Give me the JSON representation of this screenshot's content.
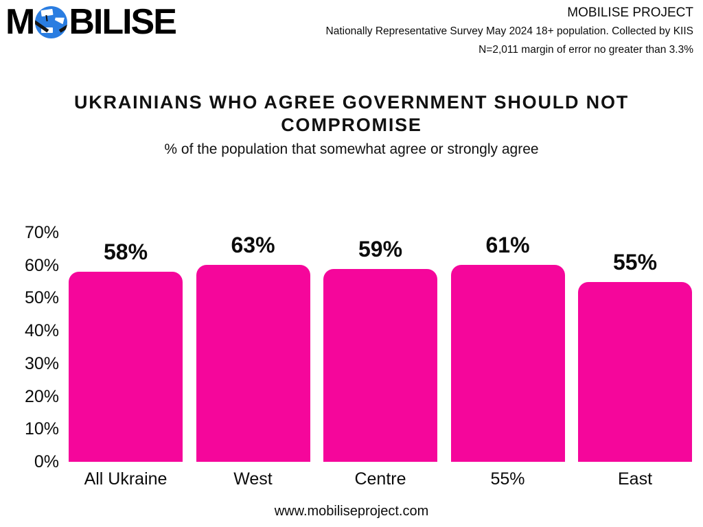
{
  "header": {
    "logo": {
      "text_pre": "M",
      "text_post": "BILISE"
    },
    "project_title": "MOBILISE PROJECT",
    "survey_line": "Nationally Representative Survey May 2024 18+ population. Collected by KIIS",
    "sample_line": "N=2,011 margin of error no greater than 3.3%"
  },
  "main": {
    "title": "UKRAINIANS WHO AGREE GOVERNMENT SHOULD NOT COMPROMISE",
    "subtitle": "% of the population that somewhat agree or strongly agree"
  },
  "footer": {
    "url": "www.mobiliseproject.com"
  },
  "colors": {
    "bar_pink": "#F5069B",
    "logo_blue": "#2A7DE1",
    "text_black": "#0B0B0B"
  },
  "chart_data": {
    "type": "bar",
    "title": "UKRAINIANS WHO AGREE GOVERNMENT SHOULD NOT COMPROMISE",
    "subtitle": "% of the population that somewhat agree or strongly agree",
    "categories": [
      "All Ukraine",
      "West",
      "Centre",
      "55%",
      "East"
    ],
    "values": [
      58,
      63,
      59,
      61,
      55
    ],
    "data_labels": [
      "58%",
      "63%",
      "59%",
      "61%",
      "55%"
    ],
    "y_ticks": [
      70,
      60,
      50,
      40,
      30,
      20,
      10,
      0
    ],
    "y_tick_labels": [
      "70%",
      "60%",
      "50%",
      "40%",
      "30%",
      "20%",
      "10%",
      "0%"
    ],
    "ylim": [
      0,
      70
    ],
    "xlabel": "",
    "ylabel": "",
    "grid": false,
    "legend": false,
    "bar_color": "#F5069B"
  }
}
